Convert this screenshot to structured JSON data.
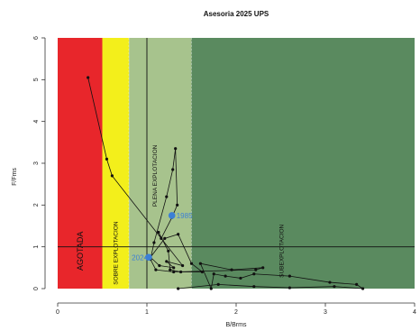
{
  "chart_data": {
    "type": "scatter",
    "title": "Asesoria 2025 UPS",
    "xlabel": "B/Brms",
    "ylabel": "F/Fms",
    "xlim": [
      0,
      4
    ],
    "ylim": [
      0,
      6
    ],
    "x_ticks": [
      0,
      1,
      2,
      3,
      4
    ],
    "y_ticks": [
      0,
      1,
      2,
      3,
      4,
      5,
      6
    ],
    "x_tick_labels": [
      "0",
      "1",
      "2",
      "3",
      "4"
    ],
    "y_tick_labels": [
      "0",
      "1",
      "2",
      "3",
      "4",
      "5",
      "6"
    ],
    "grid": false,
    "legend": "none",
    "zones": [
      {
        "label": "AGOTADA",
        "x_from": 0.0,
        "x_to": 0.5,
        "color": "#e8262b"
      },
      {
        "label": "SOBRE EXPLOTACION",
        "x_from": 0.5,
        "x_to": 0.8,
        "color": "#f3ef1b"
      },
      {
        "label": "PLENA EXPLOTACION",
        "x_from": 0.8,
        "x_to": 1.5,
        "color": "#a7c38d"
      },
      {
        "label": "SUBEXPLOTACION",
        "x_from": 1.5,
        "x_to": 4.0,
        "color": "#5a8a5f"
      }
    ],
    "reference_lines": {
      "vertical_x": 1.0,
      "horizontal_y": 1.0
    },
    "series": [
      {
        "marker_color": "#111111",
        "x": [
          0.34,
          0.55,
          0.61,
          1.4,
          1.22,
          1.3,
          1.14,
          1.04,
          1.2,
          1.35,
          1.5,
          1.62,
          1.38,
          1.26,
          1.24,
          1.13,
          1.16,
          1.28,
          1.34,
          1.32,
          1.29,
          1.22,
          1.08,
          1.04,
          1.1,
          1.3,
          2.22,
          2.3,
          1.95,
          1.6,
          1.72,
          1.75,
          1.88,
          2.05,
          2.2,
          2.6,
          3.05,
          3.35,
          3.42,
          3.1,
          2.6,
          2.2,
          1.8,
          1.35
        ],
        "y": [
          5.05,
          3.1,
          2.7,
          0.55,
          0.65,
          0.5,
          0.55,
          0.75,
          1.2,
          1.3,
          0.6,
          0.4,
          0.4,
          0.45,
          0.9,
          1.35,
          1.2,
          1.7,
          2.0,
          3.35,
          2.85,
          2.2,
          1.1,
          0.7,
          0.45,
          0.4,
          0.45,
          0.5,
          0.45,
          0.6,
          0.0,
          0.35,
          0.3,
          0.25,
          0.35,
          0.3,
          0.15,
          0.1,
          0.0,
          0.05,
          0.02,
          0.05,
          0.1,
          0.0
        ]
      }
    ],
    "highlighted_points": [
      {
        "label": "1985",
        "x": 1.28,
        "y": 1.75,
        "color": "#3b7fd6"
      },
      {
        "label": "2024",
        "x": 1.02,
        "y": 0.75,
        "color": "#3b7fd6"
      }
    ]
  }
}
